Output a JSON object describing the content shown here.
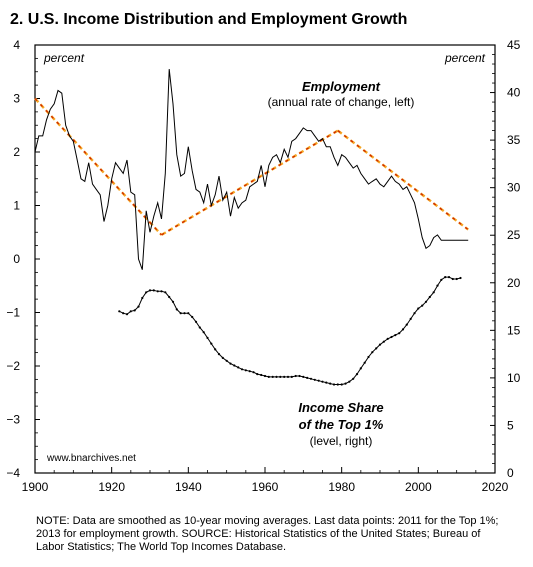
{
  "chart_data": {
    "type": "line",
    "title": "2. U.S. Income Distribution and Employment Growth",
    "left_axis_unit": "percent",
    "right_axis_unit": "percent",
    "ylim_left": [
      -4,
      4
    ],
    "ylim_right": [
      0,
      45
    ],
    "xlim": [
      1900,
      2020
    ],
    "x_ticks": [
      1900,
      1920,
      1940,
      1960,
      1980,
      2000,
      2020
    ],
    "y_ticks_left": [
      4,
      3,
      2,
      1,
      0,
      "−1",
      "−2",
      "−3",
      "−4"
    ],
    "y_ticks_right": [
      45,
      40,
      35,
      30,
      25,
      20,
      15,
      10,
      5,
      0
    ],
    "grid": false,
    "employment_label": "Employment",
    "employment_sublabel": "(annual rate of change, left)",
    "income_label_1": "Income Share",
    "income_label_2": "of the Top 1%",
    "income_sublabel": "(level, right)",
    "watermark": "www.bnarchives.net",
    "series": [
      {
        "name": "Employment",
        "axis": "left",
        "x": [
          1900,
          1901,
          1902,
          1903,
          1904,
          1905,
          1906,
          1907,
          1908,
          1909,
          1910,
          1911,
          1912,
          1913,
          1914,
          1915,
          1916,
          1917,
          1918,
          1919,
          1920,
          1921,
          1922,
          1923,
          1924,
          1925,
          1926,
          1927,
          1928,
          1929,
          1930,
          1931,
          1932,
          1933,
          1934,
          1935,
          1936,
          1937,
          1938,
          1939,
          1940,
          1941,
          1942,
          1943,
          1944,
          1945,
          1946,
          1947,
          1948,
          1949,
          1950,
          1951,
          1952,
          1953,
          1954,
          1955,
          1956,
          1957,
          1958,
          1959,
          1960,
          1961,
          1962,
          1963,
          1964,
          1965,
          1966,
          1967,
          1968,
          1969,
          1970,
          1971,
          1972,
          1973,
          1974,
          1975,
          1976,
          1977,
          1978,
          1979,
          1980,
          1981,
          1982,
          1983,
          1984,
          1985,
          1986,
          1987,
          1988,
          1989,
          1990,
          1991,
          1992,
          1993,
          1994,
          1995,
          1996,
          1997,
          1998,
          1999,
          2000,
          2001,
          2002,
          2003,
          2004,
          2005,
          2006,
          2007,
          2008,
          2009,
          2010,
          2011,
          2012,
          2013
        ],
        "values": [
          2.0,
          2.3,
          2.3,
          2.6,
          2.8,
          2.9,
          3.15,
          3.1,
          2.5,
          2.3,
          2.2,
          1.85,
          1.5,
          1.45,
          1.8,
          1.4,
          1.3,
          1.2,
          0.7,
          1.0,
          1.5,
          1.8,
          1.7,
          1.6,
          1.85,
          1.25,
          1.2,
          0.0,
          -0.2,
          0.9,
          0.5,
          0.8,
          1.05,
          0.75,
          1.6,
          3.55,
          2.9,
          1.95,
          1.55,
          1.6,
          2.1,
          1.65,
          1.3,
          1.25,
          1.05,
          1.4,
          1.0,
          1.2,
          1.55,
          1.1,
          1.25,
          0.8,
          1.15,
          0.95,
          1.05,
          1.1,
          1.35,
          1.4,
          1.45,
          1.75,
          1.35,
          1.75,
          1.9,
          1.95,
          1.8,
          2.05,
          1.9,
          2.2,
          2.25,
          2.35,
          2.45,
          2.4,
          2.4,
          2.3,
          2.2,
          2.25,
          2.1,
          2.1,
          1.9,
          1.75,
          1.95,
          1.9,
          1.8,
          1.7,
          1.75,
          1.6,
          1.5,
          1.4,
          1.45,
          1.5,
          1.4,
          1.35,
          1.45,
          1.55,
          1.45,
          1.4,
          1.3,
          1.35,
          1.2,
          1.05,
          0.75,
          0.4,
          0.2,
          0.25,
          0.4,
          0.45,
          0.35,
          0.35,
          0.35,
          0.35,
          0.35,
          0.35,
          0.35,
          0.35
        ]
      },
      {
        "name": "Income Share of the Top 1%",
        "axis": "right",
        "x": [
          1922,
          1923,
          1924,
          1925,
          1926,
          1927,
          1928,
          1929,
          1930,
          1931,
          1932,
          1933,
          1934,
          1935,
          1936,
          1937,
          1938,
          1939,
          1940,
          1941,
          1942,
          1943,
          1944,
          1945,
          1946,
          1947,
          1948,
          1949,
          1950,
          1951,
          1952,
          1953,
          1954,
          1955,
          1956,
          1957,
          1958,
          1959,
          1960,
          1961,
          1962,
          1963,
          1964,
          1965,
          1966,
          1967,
          1968,
          1969,
          1970,
          1971,
          1972,
          1973,
          1974,
          1975,
          1976,
          1977,
          1978,
          1979,
          1980,
          1981,
          1982,
          1983,
          1984,
          1985,
          1986,
          1987,
          1988,
          1989,
          1990,
          1991,
          1992,
          1993,
          1994,
          1995,
          1996,
          1997,
          1998,
          1999,
          2000,
          2001,
          2002,
          2003,
          2004,
          2005,
          2006,
          2007,
          2008,
          2009,
          2010,
          2011
        ],
        "values": [
          17.0,
          16.8,
          16.7,
          17.0,
          17.1,
          17.5,
          18.4,
          19.0,
          19.2,
          19.2,
          19.1,
          19.1,
          19.0,
          18.5,
          18.0,
          17.2,
          16.8,
          16.8,
          16.8,
          16.4,
          15.9,
          15.3,
          14.8,
          14.2,
          13.6,
          13.0,
          12.5,
          12.1,
          11.8,
          11.5,
          11.3,
          11.1,
          10.9,
          10.8,
          10.7,
          10.6,
          10.4,
          10.3,
          10.2,
          10.1,
          10.1,
          10.1,
          10.1,
          10.1,
          10.1,
          10.1,
          10.2,
          10.2,
          10.1,
          10.0,
          9.9,
          9.8,
          9.7,
          9.6,
          9.5,
          9.4,
          9.3,
          9.3,
          9.3,
          9.4,
          9.6,
          9.9,
          10.4,
          11.0,
          11.6,
          12.2,
          12.7,
          13.1,
          13.5,
          13.8,
          14.1,
          14.3,
          14.5,
          14.7,
          15.1,
          15.6,
          16.2,
          16.8,
          17.3,
          17.6,
          18.0,
          18.5,
          19.0,
          19.7,
          20.3,
          20.6,
          20.6,
          20.4,
          20.4,
          20.5
        ]
      },
      {
        "name": "Employment trend 1900-1933",
        "axis": "left",
        "style": "dashed",
        "x": [
          1900,
          1933
        ],
        "values": [
          3.0,
          0.45
        ]
      },
      {
        "name": "Employment trend 1933-1979",
        "axis": "left",
        "style": "dashed",
        "x": [
          1933,
          1979
        ],
        "values": [
          0.45,
          2.4
        ]
      },
      {
        "name": "Employment trend 1979-2013",
        "axis": "left",
        "style": "dashed",
        "x": [
          1979,
          2013
        ],
        "values": [
          2.4,
          0.55
        ]
      }
    ]
  },
  "note": "NOTE: Data are smoothed as 10-year moving averages. Last data points: 2011 for the Top 1%; 2013 for employment growth. SOURCE: Historical Statistics of the United States; Bureau of Labor Statistics; The World Top Incomes Database.",
  "colors": {
    "axis": "#000000",
    "employment_line": "#000000",
    "income_line": "#000000",
    "trend_red": "#cc2200",
    "trend_orange": "#f5a623"
  }
}
